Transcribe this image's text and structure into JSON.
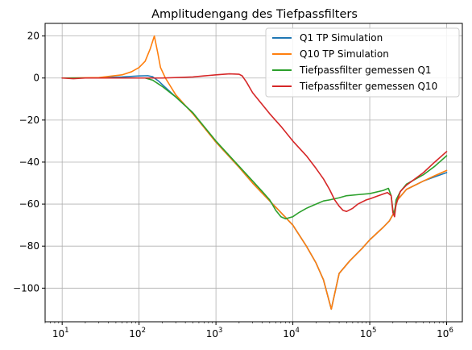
{
  "chart_data": {
    "type": "line",
    "title": "Amplitudengang des Tiefpassfilters",
    "xlabel": "",
    "ylabel": "",
    "xscale": "log",
    "xlim": [
      6,
      1600000
    ],
    "ylim": [
      -116,
      26
    ],
    "grid": true,
    "legend_position": "top-right",
    "x_ticks": [
      {
        "base": "10",
        "exp": "1",
        "value": 10
      },
      {
        "base": "10",
        "exp": "2",
        "value": 100
      },
      {
        "base": "10",
        "exp": "3",
        "value": 1000
      },
      {
        "base": "10",
        "exp": "4",
        "value": 10000
      },
      {
        "base": "10",
        "exp": "5",
        "value": 100000
      },
      {
        "base": "10",
        "exp": "6",
        "value": 1000000
      }
    ],
    "y_ticks": [
      {
        "label": "20",
        "value": 20
      },
      {
        "label": "0",
        "value": 0
      },
      {
        "label": "−20",
        "value": -20
      },
      {
        "label": "−40",
        "value": -40
      },
      {
        "label": "−60",
        "value": -60
      },
      {
        "label": "−80",
        "value": -80
      },
      {
        "label": "−100",
        "value": -100
      }
    ],
    "series": [
      {
        "name": "Q1 TP Simulation",
        "color": "#1f77b4",
        "points": [
          [
            10,
            0
          ],
          [
            30,
            0.1
          ],
          [
            60,
            0.5
          ],
          [
            100,
            1.0
          ],
          [
            130,
            1.1
          ],
          [
            150,
            0.6
          ],
          [
            180,
            -1.5
          ],
          [
            220,
            -4.5
          ],
          [
            300,
            -9
          ],
          [
            500,
            -16.5
          ],
          [
            1000,
            -30.5
          ],
          [
            2000,
            -42.5
          ],
          [
            3000,
            -50
          ],
          [
            5000,
            -58.5
          ],
          [
            7000,
            -64
          ],
          [
            10000,
            -70
          ],
          [
            15000,
            -80
          ],
          [
            20000,
            -88
          ],
          [
            25000,
            -96
          ],
          [
            31623,
            -110
          ],
          [
            40000,
            -93
          ],
          [
            55000,
            -87
          ],
          [
            80000,
            -81
          ],
          [
            100000,
            -77
          ],
          [
            150000,
            -71
          ],
          [
            180000,
            -68
          ],
          [
            200000,
            -65
          ],
          [
            210000,
            -63
          ],
          [
            230000,
            -58
          ],
          [
            300000,
            -53
          ],
          [
            500000,
            -49
          ],
          [
            700000,
            -47
          ],
          [
            1000000,
            -45
          ]
        ]
      },
      {
        "name": "Q10 TP Simulation",
        "color": "#ff7f0e",
        "points": [
          [
            10,
            0
          ],
          [
            30,
            0.2
          ],
          [
            60,
            1.5
          ],
          [
            80,
            3.0
          ],
          [
            100,
            5.0
          ],
          [
            120,
            8.0
          ],
          [
            140,
            14
          ],
          [
            158,
            20
          ],
          [
            175,
            12
          ],
          [
            190,
            5
          ],
          [
            220,
            0
          ],
          [
            300,
            -8
          ],
          [
            500,
            -17
          ],
          [
            1000,
            -30.5
          ],
          [
            2000,
            -42.5
          ],
          [
            3000,
            -50
          ],
          [
            5000,
            -58.5
          ],
          [
            7000,
            -64
          ],
          [
            10000,
            -70
          ],
          [
            15000,
            -80
          ],
          [
            20000,
            -88
          ],
          [
            25000,
            -96
          ],
          [
            31623,
            -110
          ],
          [
            40000,
            -93
          ],
          [
            55000,
            -87
          ],
          [
            80000,
            -81
          ],
          [
            100000,
            -77
          ],
          [
            150000,
            -71
          ],
          [
            180000,
            -68
          ],
          [
            200000,
            -65
          ],
          [
            210000,
            -63
          ],
          [
            230000,
            -58
          ],
          [
            300000,
            -53
          ],
          [
            500000,
            -49
          ],
          [
            700000,
            -46.5
          ],
          [
            1000000,
            -44
          ]
        ]
      },
      {
        "name": "Tiefpassfilter gemessen Q1",
        "color": "#2ca02c",
        "points": [
          [
            10,
            0
          ],
          [
            14,
            0
          ],
          [
            30,
            0
          ],
          [
            60,
            0
          ],
          [
            100,
            0
          ],
          [
            120,
            0
          ],
          [
            150,
            -1
          ],
          [
            200,
            -4
          ],
          [
            300,
            -9
          ],
          [
            500,
            -16.5
          ],
          [
            1000,
            -30
          ],
          [
            2000,
            -42
          ],
          [
            3000,
            -49
          ],
          [
            4000,
            -54
          ],
          [
            5000,
            -58
          ],
          [
            6000,
            -63
          ],
          [
            7000,
            -66
          ],
          [
            8000,
            -67
          ],
          [
            10000,
            -66
          ],
          [
            12000,
            -64
          ],
          [
            15000,
            -62
          ],
          [
            20000,
            -60
          ],
          [
            25000,
            -58.5
          ],
          [
            30000,
            -58
          ],
          [
            40000,
            -57
          ],
          [
            50000,
            -56
          ],
          [
            70000,
            -55.5
          ],
          [
            100000,
            -55
          ],
          [
            150000,
            -53.5
          ],
          [
            175000,
            -52.5
          ],
          [
            190000,
            -56
          ],
          [
            200000,
            -63
          ],
          [
            210000,
            -64.5
          ],
          [
            220000,
            -58
          ],
          [
            250000,
            -54
          ],
          [
            300000,
            -50.5
          ],
          [
            500000,
            -46
          ],
          [
            700000,
            -42
          ],
          [
            1000000,
            -37
          ]
        ]
      },
      {
        "name": "Tiefpassfilter gemessen Q10",
        "color": "#d62728",
        "points": [
          [
            10,
            0
          ],
          [
            14,
            -0.3
          ],
          [
            20,
            0
          ],
          [
            50,
            0
          ],
          [
            100,
            0
          ],
          [
            200,
            0
          ],
          [
            500,
            0.5
          ],
          [
            800,
            1.2
          ],
          [
            1000,
            1.5
          ],
          [
            1500,
            2.0
          ],
          [
            2000,
            1.8
          ],
          [
            2200,
            1.0
          ],
          [
            2500,
            -2
          ],
          [
            3000,
            -7
          ],
          [
            5000,
            -17
          ],
          [
            7000,
            -23
          ],
          [
            10000,
            -30
          ],
          [
            15000,
            -37
          ],
          [
            20000,
            -43
          ],
          [
            25000,
            -48
          ],
          [
            30000,
            -53
          ],
          [
            35000,
            -58
          ],
          [
            40000,
            -61
          ],
          [
            45000,
            -63
          ],
          [
            50000,
            -63.5
          ],
          [
            60000,
            -62
          ],
          [
            70000,
            -60
          ],
          [
            90000,
            -58
          ],
          [
            100000,
            -57.5
          ],
          [
            130000,
            -56
          ],
          [
            170000,
            -54.5
          ],
          [
            190000,
            -56
          ],
          [
            200000,
            -64
          ],
          [
            210000,
            -66
          ],
          [
            220000,
            -60
          ],
          [
            250000,
            -54
          ],
          [
            300000,
            -51
          ],
          [
            500000,
            -45
          ],
          [
            700000,
            -40
          ],
          [
            1000000,
            -35
          ]
        ]
      }
    ]
  }
}
